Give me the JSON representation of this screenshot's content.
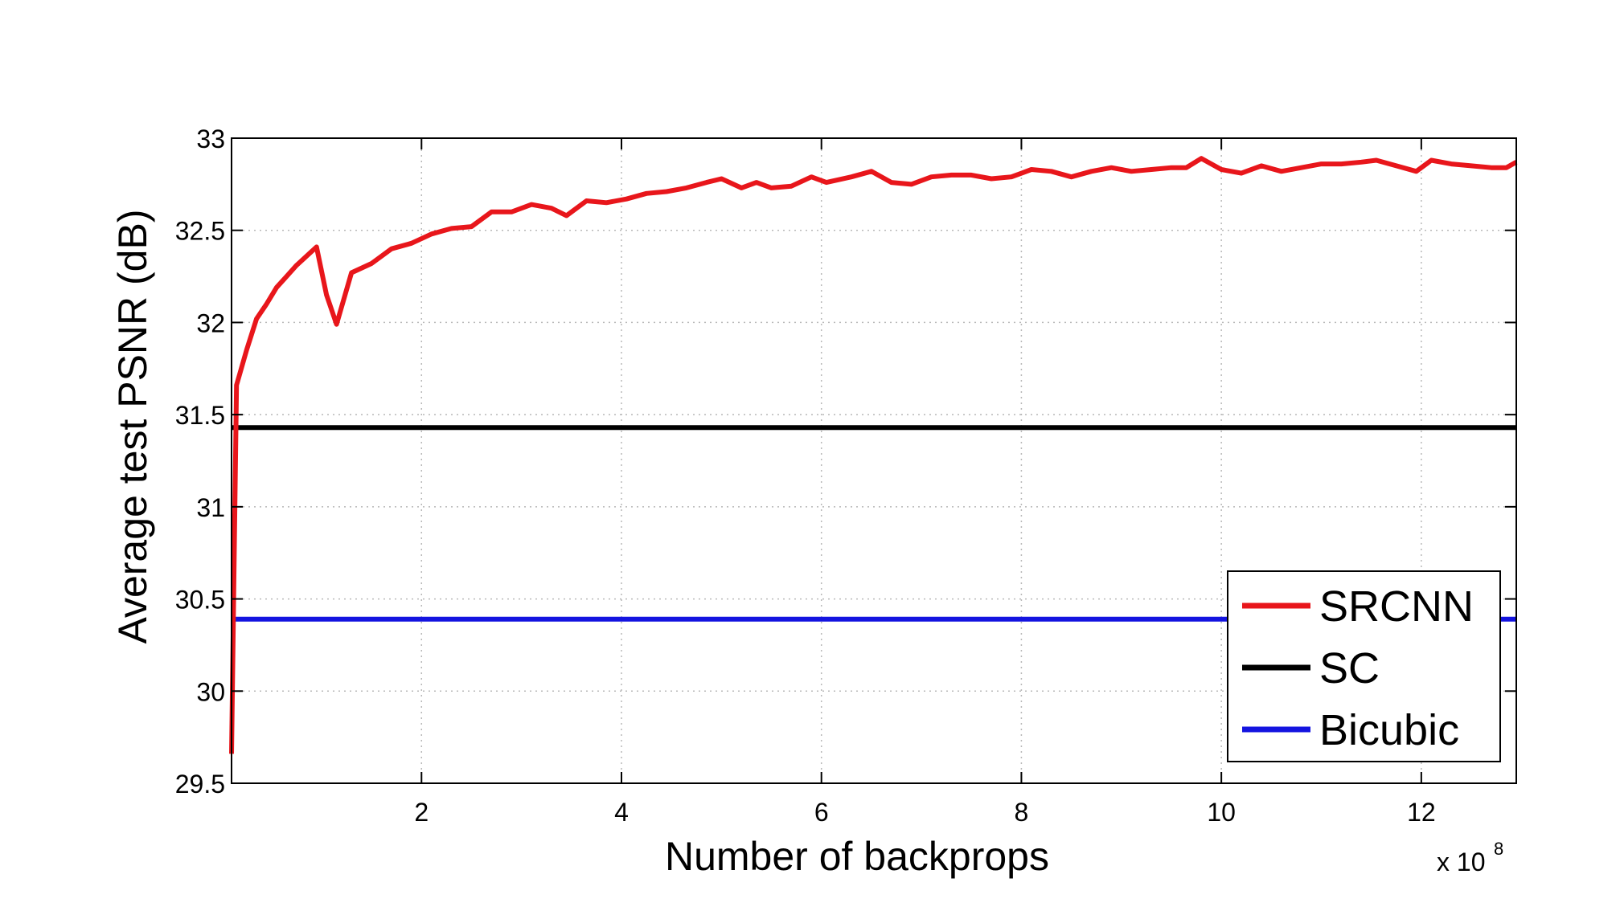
{
  "chart_data": {
    "type": "line",
    "xlabel": "Number of backprops",
    "ylabel": "Average test PSNR (dB)",
    "x_multiplier": {
      "base": "x 10",
      "exponent": "8"
    },
    "xlim": [
      0.1,
      12.95
    ],
    "ylim": [
      29.5,
      33
    ],
    "xticks": [
      2,
      4,
      6,
      8,
      10,
      12
    ],
    "yticks": [
      29.5,
      30,
      30.5,
      31,
      31.5,
      32,
      32.5,
      33
    ],
    "grid": true,
    "legend_position": "bottom-right",
    "colors": {
      "SRCNN": "#e8161b",
      "SC": "#000000",
      "Bicubic": "#1414e0"
    },
    "series": [
      {
        "name": "SRCNN",
        "x": [
          0.1,
          0.15,
          0.25,
          0.35,
          0.45,
          0.55,
          0.65,
          0.75,
          0.85,
          0.95,
          1.05,
          1.15,
          1.3,
          1.5,
          1.7,
          1.9,
          2.1,
          2.3,
          2.5,
          2.7,
          2.9,
          3.1,
          3.3,
          3.45,
          3.65,
          3.85,
          4.05,
          4.25,
          4.45,
          4.65,
          4.85,
          5.0,
          5.2,
          5.35,
          5.5,
          5.7,
          5.9,
          6.05,
          6.3,
          6.5,
          6.7,
          6.9,
          7.1,
          7.3,
          7.5,
          7.7,
          7.9,
          8.1,
          8.3,
          8.5,
          8.7,
          8.9,
          9.1,
          9.3,
          9.5,
          9.65,
          9.8,
          10.0,
          10.2,
          10.4,
          10.6,
          10.8,
          11.0,
          11.2,
          11.4,
          11.55,
          11.75,
          11.95,
          12.1,
          12.3,
          12.5,
          12.7,
          12.85,
          12.95
        ],
        "values": [
          29.66,
          31.66,
          31.85,
          32.02,
          32.1,
          32.19,
          32.25,
          32.31,
          32.36,
          32.41,
          32.15,
          31.99,
          32.27,
          32.32,
          32.4,
          32.43,
          32.48,
          32.51,
          32.52,
          32.6,
          32.6,
          32.64,
          32.62,
          32.58,
          32.66,
          32.65,
          32.67,
          32.7,
          32.71,
          32.73,
          32.76,
          32.78,
          32.73,
          32.76,
          32.73,
          32.74,
          32.79,
          32.76,
          32.79,
          32.82,
          32.76,
          32.75,
          32.79,
          32.8,
          32.8,
          32.78,
          32.79,
          32.83,
          32.82,
          32.79,
          32.82,
          32.84,
          32.82,
          32.83,
          32.84,
          32.84,
          32.89,
          32.83,
          32.81,
          32.85,
          32.82,
          32.84,
          32.86,
          32.86,
          32.87,
          32.88,
          32.85,
          32.82,
          32.88,
          32.86,
          32.85,
          32.84,
          32.84,
          32.87
        ]
      },
      {
        "name": "SC",
        "x": [
          0.1,
          12.95
        ],
        "values": [
          31.43,
          31.43
        ]
      },
      {
        "name": "Bicubic",
        "x": [
          0.1,
          12.95
        ],
        "values": [
          30.39,
          30.39
        ]
      }
    ]
  }
}
